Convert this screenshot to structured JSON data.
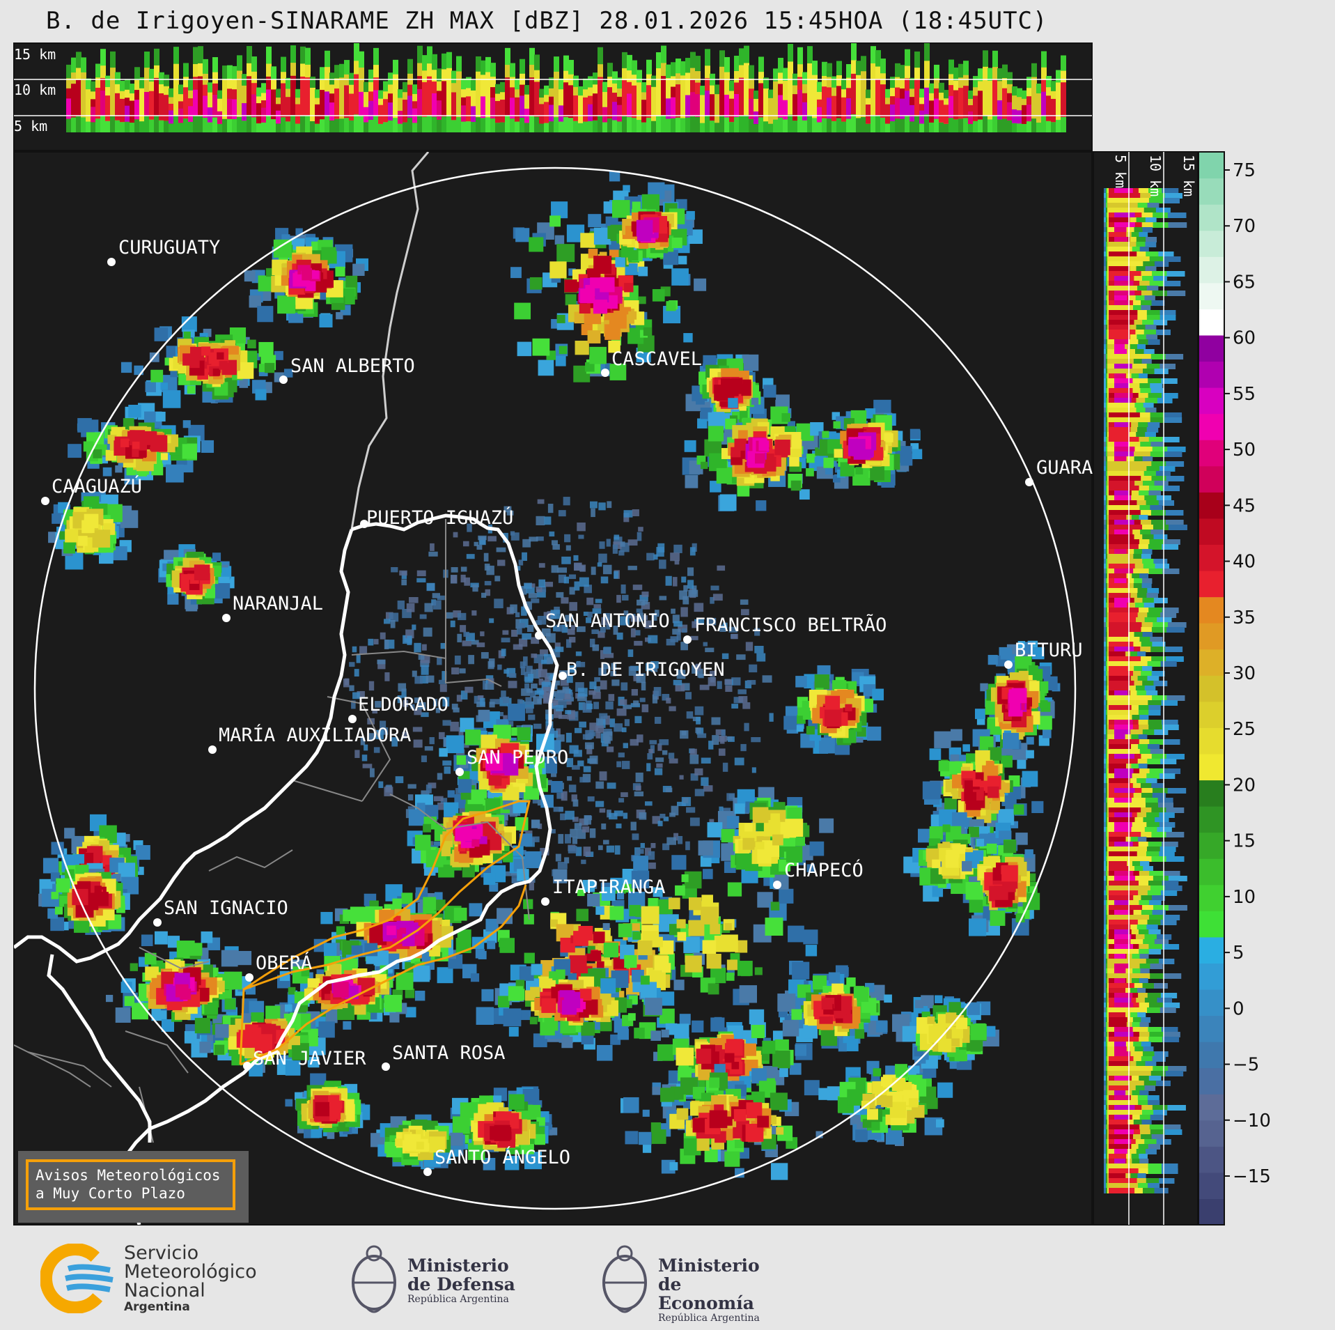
{
  "title": "B. de Irigoyen-SINARAME ZH MAX [dBZ] 28.01.2026 15:45HOA (18:45UTC)",
  "top_panel": {
    "labels": [
      "15 km",
      "10 km",
      "5 km"
    ]
  },
  "side_panel": {
    "labels": [
      "5 km",
      "10 km",
      "15 km"
    ]
  },
  "colorbar": {
    "unit": "dBZ",
    "ticks": [
      "75",
      "70",
      "65",
      "60",
      "55",
      "50",
      "45",
      "40",
      "35",
      "30",
      "25",
      "20",
      "15",
      "10",
      "5",
      "0",
      "−5",
      "−10",
      "−15"
    ],
    "colors": [
      "#3a3f6e",
      "#434a7a",
      "#4c5584",
      "#566390",
      "#5d6c98",
      "#4a6fa3",
      "#3f78ad",
      "#3b84bb",
      "#3690c8",
      "#329dd6",
      "#2aaee2",
      "#3ee036",
      "#40d030",
      "#3bbd2c",
      "#36a828",
      "#2f9424",
      "#287e1e",
      "#f0e830",
      "#e6dc2e",
      "#dccf2c",
      "#d4c12a",
      "#ddb028",
      "#e09a24",
      "#e48820",
      "#e8202e",
      "#d4142a",
      "#c00a22",
      "#a8001a",
      "#d0005a",
      "#e0007a",
      "#f000b0",
      "#d800c0",
      "#b000b0",
      "#9000a0",
      "#ffffff",
      "#eef8f2",
      "#ddf2e6",
      "#c8ecd8",
      "#b0e4c8",
      "#98dcba",
      "#80d4ac"
    ]
  },
  "cities": [
    {
      "name": "CURUGUATY"
    },
    {
      "name": "SAN ALBERTO"
    },
    {
      "name": "CAAGUAZÚ"
    },
    {
      "name": "CASCAVEL"
    },
    {
      "name": "GUARA"
    },
    {
      "name": "PUERTO IGUAZÚ"
    },
    {
      "name": "NARANJAL"
    },
    {
      "name": "SAN ANTONIO"
    },
    {
      "name": "FRANCISCO BELTRÃO"
    },
    {
      "name": "B. DE IRIGOYEN"
    },
    {
      "name": "BITURU"
    },
    {
      "name": "ELDORADO"
    },
    {
      "name": "MARÍA AUXILIADORA"
    },
    {
      "name": "SAN PEDRO"
    },
    {
      "name": "CHAPECÓ"
    },
    {
      "name": "ITAPIRANGA"
    },
    {
      "name": "SAN IGNACIO"
    },
    {
      "name": "OBERÁ"
    },
    {
      "name": "SAN JAVIER"
    },
    {
      "name": "SANTA ROSA"
    },
    {
      "name": "SANTO ÁNGELO"
    }
  ],
  "legend_box": {
    "text": "Avisos Meteorológicos\na Muy Corto Plazo"
  },
  "logos": {
    "smn": {
      "line1": "Servicio",
      "line2": "Meteorológico",
      "line3": "Nacional",
      "line4": "Argentina"
    },
    "defensa": {
      "line1": "Ministerio",
      "line2": "de Defensa",
      "sub": "República Argentina"
    },
    "economia": {
      "line1": "Ministerio",
      "line2": "de Economía",
      "sub": "República Argentina"
    }
  }
}
